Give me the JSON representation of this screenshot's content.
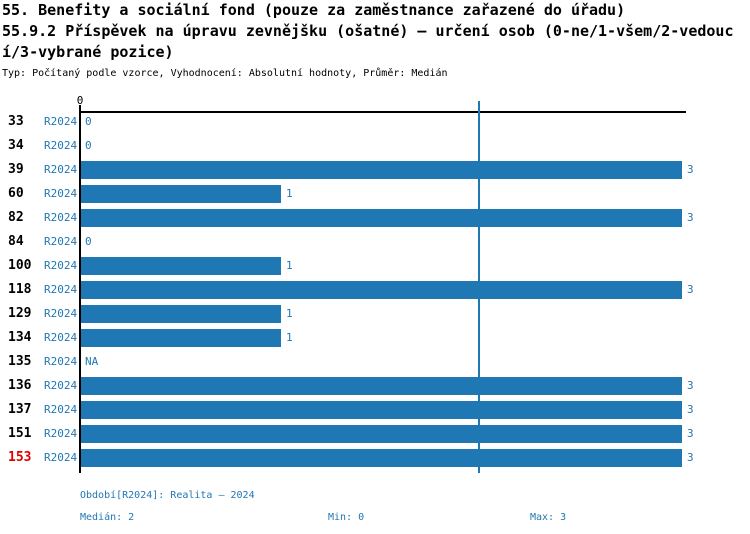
{
  "header": {
    "title_line1": "55. Benefity a sociální fond (pouze za zaměstnance zařazené do úřadu)",
    "title_line2": "55.9.2 Příspěvek na úpravu zevnějšku (ošatné) – určení osob (0-ne/1-všem/2-vedouc",
    "title_line3": "í/3-vybrané pozice)",
    "subtitle": "Typ: Počítaný podle vzorce, Vyhodnocení: Absolutní hodnoty, Průměr: Medián"
  },
  "axis": {
    "tick_zero_label": "0",
    "min": 0,
    "max": 3
  },
  "chart": {
    "series_label": "R2024",
    "median_value": 2,
    "rows": [
      {
        "id": "33",
        "period": "R2024",
        "value": 0,
        "label": "0",
        "highlight": false
      },
      {
        "id": "34",
        "period": "R2024",
        "value": 0,
        "label": "0",
        "highlight": false
      },
      {
        "id": "39",
        "period": "R2024",
        "value": 3,
        "label": "3",
        "highlight": false
      },
      {
        "id": "60",
        "period": "R2024",
        "value": 1,
        "label": "1",
        "highlight": false
      },
      {
        "id": "82",
        "period": "R2024",
        "value": 3,
        "label": "3",
        "highlight": false
      },
      {
        "id": "84",
        "period": "R2024",
        "value": 0,
        "label": "0",
        "highlight": false
      },
      {
        "id": "100",
        "period": "R2024",
        "value": 1,
        "label": "1",
        "highlight": false
      },
      {
        "id": "118",
        "period": "R2024",
        "value": 3,
        "label": "3",
        "highlight": false
      },
      {
        "id": "129",
        "period": "R2024",
        "value": 1,
        "label": "1",
        "highlight": false
      },
      {
        "id": "134",
        "period": "R2024",
        "value": 1,
        "label": "1",
        "highlight": false
      },
      {
        "id": "135",
        "period": "R2024",
        "value": null,
        "label": "NA",
        "highlight": false
      },
      {
        "id": "136",
        "period": "R2024",
        "value": 3,
        "label": "3",
        "highlight": false
      },
      {
        "id": "137",
        "period": "R2024",
        "value": 3,
        "label": "3",
        "highlight": false
      },
      {
        "id": "151",
        "period": "R2024",
        "value": 3,
        "label": "3",
        "highlight": false
      },
      {
        "id": "153",
        "period": "R2024",
        "value": 3,
        "label": "3",
        "highlight": true
      }
    ]
  },
  "footer": {
    "period_note": "Období[R2024]: Realita – 2024",
    "median": "Medián: 2",
    "min": "Min: 0",
    "max": "Max: 3"
  },
  "colors": {
    "bar": "#1f77b4",
    "accent_text": "#1f77b4",
    "median_line": "#1f77b4",
    "highlight_row": "#e00000",
    "axis": "#000000"
  },
  "chart_data": {
    "type": "bar",
    "orientation": "horizontal",
    "title": "55. Benefity a sociální fond (pouze za zaměstnance zařazené do úřadu)",
    "subtitle": "55.9.2 Příspěvek na úpravu zevnějšku (ošatné) – určení osob (0-ne/1-všem/2-vedoucí/3-vybrané pozice)",
    "meta": "Typ: Počítaný podle vzorce, Vyhodnocení: Absolutní hodnoty, Průměr: Medián",
    "categories": [
      "33",
      "34",
      "39",
      "60",
      "82",
      "84",
      "100",
      "118",
      "129",
      "134",
      "135",
      "136",
      "137",
      "151",
      "153"
    ],
    "series": [
      {
        "name": "R2024",
        "values": [
          0,
          0,
          3,
          1,
          3,
          0,
          1,
          3,
          1,
          1,
          null,
          3,
          3,
          3,
          3
        ]
      }
    ],
    "value_labels": [
      "0",
      "0",
      "3",
      "1",
      "3",
      "0",
      "1",
      "3",
      "1",
      "1",
      "NA",
      "3",
      "3",
      "3",
      "3"
    ],
    "xlabel": "",
    "ylabel": "",
    "xlim": [
      0,
      3
    ],
    "grid": false,
    "legend_position": "none",
    "reference_lines": [
      {
        "name": "median",
        "value": 2
      }
    ],
    "stats": {
      "median": 2,
      "min": 0,
      "max": 3
    },
    "period": "Realita – 2024",
    "highlighted_category": "153"
  }
}
